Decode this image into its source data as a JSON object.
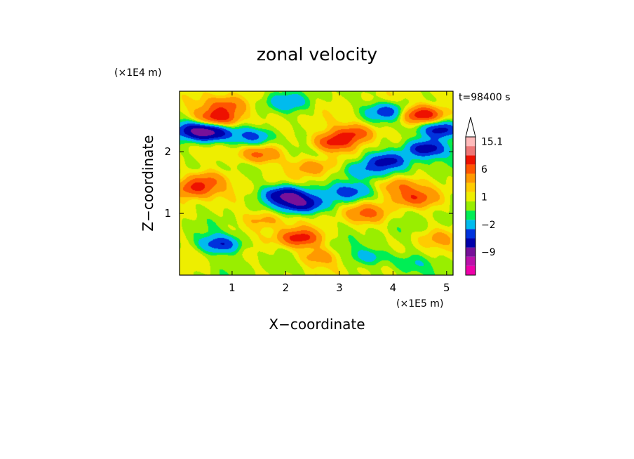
{
  "chart_data": {
    "type": "heatmap",
    "title": "zonal velocity",
    "xlabel": "X−coordinate",
    "ylabel": "Z−coordinate",
    "x_unit": "(×1E5 m)",
    "y_unit": "(×1E4 m)",
    "time_label": "t=98400 s",
    "xlim": [
      0.02,
      5.12
    ],
    "ylim": [
      0.0,
      2.98
    ],
    "x_ticks": [
      "1",
      "2",
      "3",
      "4",
      "5"
    ],
    "y_ticks": [
      "1",
      "2"
    ],
    "x_tick_values": [
      1,
      2,
      3,
      4,
      5
    ],
    "y_tick_values": [
      1,
      2
    ],
    "colorbar": {
      "levels": [
        -15,
        -12,
        -9,
        -6,
        -4,
        -2,
        -1,
        0,
        1,
        2,
        4,
        6,
        9,
        12,
        15.1
      ],
      "labels": [
        "15.1",
        "6",
        "1",
        "−2",
        "−9"
      ],
      "label_values": [
        15.1,
        6,
        1,
        -2,
        -9
      ],
      "colors": [
        "#ee00aa",
        "#bb11aa",
        "#771199",
        "#0000aa",
        "#0033dd",
        "#00bbee",
        "#00ee55",
        "#99ee00",
        "#eeee00",
        "#ffcc00",
        "#ff9900",
        "#ff5500",
        "#ee1100",
        "#ee7777",
        "#ffbbbb"
      ],
      "extend_max": true
    },
    "features": [
      {
        "x": 0.75,
        "z": 2.55,
        "v": 8
      },
      {
        "x": 0.9,
        "z": 2.75,
        "v": 5
      },
      {
        "x": 0.6,
        "z": 2.3,
        "v": -8
      },
      {
        "x": 0.3,
        "z": 2.35,
        "v": -6
      },
      {
        "x": 1.4,
        "z": 2.25,
        "v": -5
      },
      {
        "x": 1.5,
        "z": 1.95,
        "v": 5
      },
      {
        "x": 0.3,
        "z": 1.4,
        "v": 6
      },
      {
        "x": 0.5,
        "z": 1.55,
        "v": 4
      },
      {
        "x": 0.6,
        "z": 0.9,
        "v": 0
      },
      {
        "x": 0.8,
        "z": 0.5,
        "v": -6
      },
      {
        "x": 2.0,
        "z": 1.3,
        "v": -9
      },
      {
        "x": 2.3,
        "z": 1.15,
        "v": -8
      },
      {
        "x": 2.25,
        "z": 0.6,
        "v": 7
      },
      {
        "x": 2.6,
        "z": 0.3,
        "v": 3
      },
      {
        "x": 2.9,
        "z": 2.15,
        "v": 7
      },
      {
        "x": 3.3,
        "z": 2.3,
        "v": 6
      },
      {
        "x": 3.2,
        "z": 1.35,
        "v": -5
      },
      {
        "x": 2.5,
        "z": 1.75,
        "v": 3
      },
      {
        "x": 3.4,
        "z": 1.7,
        "v": -4
      },
      {
        "x": 3.9,
        "z": 1.85,
        "v": -7
      },
      {
        "x": 4.6,
        "z": 2.05,
        "v": -8
      },
      {
        "x": 4.55,
        "z": 2.6,
        "v": 9
      },
      {
        "x": 4.9,
        "z": 2.35,
        "v": -7
      },
      {
        "x": 3.9,
        "z": 2.65,
        "v": -6
      },
      {
        "x": 4.1,
        "z": 1.45,
        "v": 4
      },
      {
        "x": 4.4,
        "z": 1.25,
        "v": 5
      },
      {
        "x": 4.0,
        "z": 0.7,
        "v": 0
      },
      {
        "x": 4.8,
        "z": 0.6,
        "v": 2
      },
      {
        "x": 3.6,
        "z": 0.3,
        "v": -3
      },
      {
        "x": 4.3,
        "z": 0.2,
        "v": -2
      },
      {
        "x": 2.0,
        "z": 2.8,
        "v": -3
      },
      {
        "x": 1.6,
        "z": 0.9,
        "v": 3
      },
      {
        "x": 3.5,
        "z": 1.0,
        "v": 4
      }
    ]
  }
}
